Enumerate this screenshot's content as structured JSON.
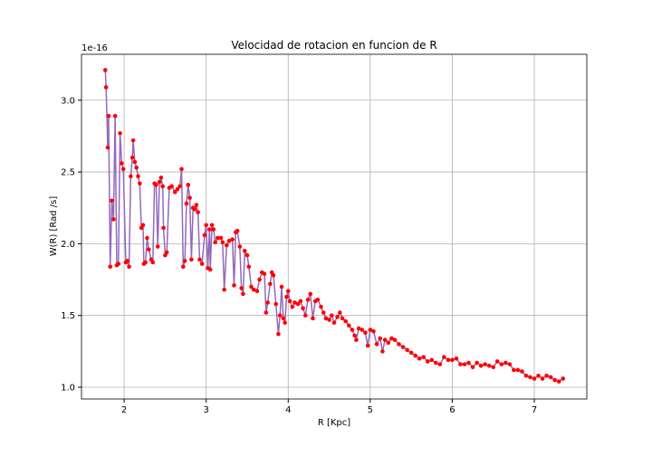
{
  "chart_data": {
    "type": "line",
    "title": "Velocidad de rotacion en funcion de R",
    "x_label": "R [Kpc]",
    "y_label": "W(R) [Rad /s]",
    "y_offset_label": "1e-16",
    "line_color": "#9467bd",
    "marker_color": "#ff0000",
    "grid": true,
    "xlim": [
      1.48,
      7.64
    ],
    "ylim": [
      0.918,
      3.32
    ],
    "xticks": [
      2,
      3,
      4,
      5,
      6,
      7
    ],
    "yticks": [
      {
        "value": 1.0,
        "label": "1.0"
      },
      {
        "value": 1.5,
        "label": "1.5"
      },
      {
        "value": 2.0,
        "label": "2.0"
      },
      {
        "value": 2.5,
        "label": "2.5"
      },
      {
        "value": 3.0,
        "label": "3.0"
      }
    ],
    "x": [
      1.77,
      1.78,
      1.8,
      1.81,
      1.83,
      1.85,
      1.87,
      1.89,
      1.91,
      1.93,
      1.95,
      1.97,
      1.99,
      2.02,
      2.04,
      2.06,
      2.08,
      2.1,
      2.11,
      2.13,
      2.15,
      2.17,
      2.19,
      2.21,
      2.23,
      2.24,
      2.26,
      2.28,
      2.3,
      2.33,
      2.35,
      2.37,
      2.39,
      2.41,
      2.43,
      2.45,
      2.47,
      2.48,
      2.5,
      2.52,
      2.55,
      2.58,
      2.62,
      2.65,
      2.68,
      2.7,
      2.72,
      2.74,
      2.76,
      2.78,
      2.8,
      2.82,
      2.84,
      2.86,
      2.88,
      2.9,
      2.92,
      2.95,
      2.98,
      3.0,
      3.02,
      3.04,
      3.05,
      3.07,
      3.09,
      3.11,
      3.14,
      3.18,
      3.2,
      3.22,
      3.25,
      3.28,
      3.32,
      3.34,
      3.36,
      3.38,
      3.41,
      3.43,
      3.45,
      3.47,
      3.5,
      3.52,
      3.55,
      3.58,
      3.62,
      3.65,
      3.68,
      3.71,
      3.73,
      3.75,
      3.78,
      3.8,
      3.82,
      3.85,
      3.88,
      3.9,
      3.92,
      3.94,
      3.96,
      3.98,
      4.0,
      4.02,
      4.05,
      4.08,
      4.12,
      4.15,
      4.18,
      4.21,
      4.24,
      4.27,
      4.3,
      4.33,
      4.36,
      4.4,
      4.43,
      4.46,
      4.5,
      4.53,
      4.56,
      4.6,
      4.63,
      4.66,
      4.7,
      4.74,
      4.78,
      4.81,
      4.83,
      4.86,
      4.9,
      4.94,
      4.97,
      5.0,
      5.04,
      5.08,
      5.12,
      5.15,
      5.18,
      5.22,
      5.26,
      5.3,
      5.35,
      5.4,
      5.45,
      5.5,
      5.55,
      5.6,
      5.65,
      5.7,
      5.75,
      5.8,
      5.85,
      5.9,
      5.95,
      6.0,
      6.05,
      6.1,
      6.15,
      6.2,
      6.25,
      6.3,
      6.35,
      6.4,
      6.45,
      6.5,
      6.55,
      6.6,
      6.65,
      6.7,
      6.75,
      6.8,
      6.85,
      6.9,
      6.95,
      7.0,
      7.05,
      7.1,
      7.15,
      7.2,
      7.25,
      7.3,
      7.35
    ],
    "values": [
      3.21,
      3.09,
      2.67,
      2.89,
      1.84,
      2.3,
      2.17,
      2.89,
      1.85,
      1.86,
      2.77,
      2.56,
      2.52,
      1.87,
      1.88,
      1.84,
      2.47,
      2.6,
      2.72,
      2.57,
      2.53,
      2.47,
      2.42,
      2.11,
      2.13,
      1.86,
      1.87,
      2.04,
      1.96,
      1.89,
      1.87,
      2.42,
      2.41,
      1.98,
      2.43,
      2.46,
      2.4,
      2.11,
      1.92,
      1.94,
      2.39,
      2.4,
      2.36,
      2.38,
      2.4,
      2.52,
      1.84,
      1.88,
      2.28,
      2.41,
      2.32,
      1.89,
      2.25,
      2.24,
      2.27,
      2.22,
      1.89,
      1.86,
      2.06,
      2.13,
      1.83,
      2.1,
      1.82,
      2.13,
      2.1,
      2.01,
      2.04,
      2.04,
      2.01,
      1.68,
      1.99,
      2.02,
      2.03,
      1.71,
      2.08,
      2.09,
      1.98,
      1.69,
      1.65,
      1.95,
      1.92,
      1.84,
      1.7,
      1.68,
      1.67,
      1.75,
      1.8,
      1.79,
      1.52,
      1.59,
      1.72,
      1.8,
      1.78,
      1.58,
      1.37,
      1.5,
      1.7,
      1.48,
      1.45,
      1.63,
      1.67,
      1.6,
      1.56,
      1.59,
      1.58,
      1.6,
      1.55,
      1.5,
      1.61,
      1.65,
      1.48,
      1.6,
      1.61,
      1.56,
      1.52,
      1.48,
      1.47,
      1.5,
      1.45,
      1.49,
      1.52,
      1.48,
      1.46,
      1.43,
      1.4,
      1.36,
      1.33,
      1.41,
      1.4,
      1.38,
      1.29,
      1.4,
      1.39,
      1.3,
      1.34,
      1.25,
      1.33,
      1.31,
      1.34,
      1.33,
      1.3,
      1.28,
      1.26,
      1.24,
      1.22,
      1.2,
      1.21,
      1.18,
      1.19,
      1.17,
      1.16,
      1.21,
      1.19,
      1.19,
      1.2,
      1.16,
      1.16,
      1.17,
      1.14,
      1.17,
      1.15,
      1.16,
      1.15,
      1.14,
      1.18,
      1.16,
      1.17,
      1.16,
      1.12,
      1.12,
      1.11,
      1.08,
      1.07,
      1.06,
      1.08,
      1.06,
      1.08,
      1.07,
      1.05,
      1.04,
      1.06
    ]
  }
}
